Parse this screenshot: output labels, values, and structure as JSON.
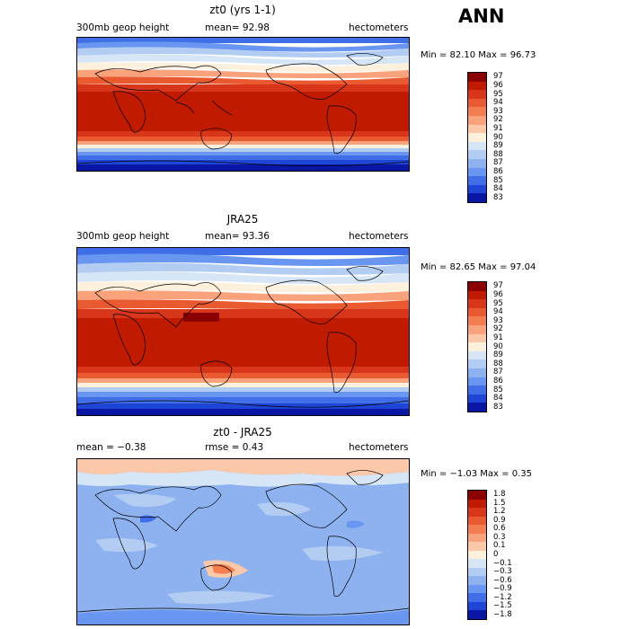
{
  "season": "ANN",
  "panels": [
    {
      "id": "model",
      "title": "zt0 (yrs 1-1)",
      "left_text": "300mb geop height",
      "center_text": "mean=  92.98",
      "right_text": "hectometers",
      "minmax": "Min =  82.10 Max =  96.73",
      "colorbar_labels": [
        "97",
        "96",
        "95",
        "94",
        "93",
        "92",
        "91",
        "90",
        "89",
        "88",
        "87",
        "86",
        "85",
        "84",
        "83"
      ],
      "colors": [
        "#8b0000",
        "#c01a00",
        "#d8361a",
        "#ea5a30",
        "#f47d52",
        "#f9a27c",
        "#fbc8a9",
        "#fdf0dc",
        "#d6e6f7",
        "#b3cdf2",
        "#8eb2f0",
        "#6896f0",
        "#3f6ee6",
        "#1f45d6",
        "#0a17a4"
      ]
    },
    {
      "id": "obs",
      "title": "JRA25",
      "left_text": "300mb geop height",
      "center_text": "mean=  93.36",
      "right_text": "hectometers",
      "minmax": "Min =  82.65 Max =  97.04",
      "colorbar_labels": [
        "97",
        "96",
        "95",
        "94",
        "93",
        "92",
        "91",
        "90",
        "89",
        "88",
        "87",
        "86",
        "85",
        "84",
        "83"
      ],
      "colors": [
        "#8b0000",
        "#c01a00",
        "#d8361a",
        "#ea5a30",
        "#f47d52",
        "#f9a27c",
        "#fbc8a9",
        "#fdf0dc",
        "#d6e6f7",
        "#b3cdf2",
        "#8eb2f0",
        "#6896f0",
        "#3f6ee6",
        "#1f45d6",
        "#0a17a4"
      ]
    },
    {
      "id": "diff",
      "title": "zt0 - JRA25",
      "left_text": "mean =  −0.38",
      "center_text": "rmse =   0.43",
      "right_text": "hectometers",
      "minmax": "Min =  −1.03 Max =   0.35",
      "colorbar_labels": [
        "1.8",
        "1.5",
        "1.2",
        "0.9",
        "0.6",
        "0.3",
        "0.1",
        "0",
        "−0.1",
        "−0.3",
        "−0.6",
        "−0.9",
        "−1.2",
        "−1.5",
        "−1.8"
      ],
      "colors": [
        "#8b0000",
        "#c01a00",
        "#d8361a",
        "#ea5a30",
        "#f47d52",
        "#f9a27c",
        "#fbc8a9",
        "#fdf0dc",
        "#d6e6f7",
        "#b3cdf2",
        "#8eb2f0",
        "#6896f0",
        "#3f6ee6",
        "#1f45d6",
        "#0a17a4"
      ]
    }
  ]
}
